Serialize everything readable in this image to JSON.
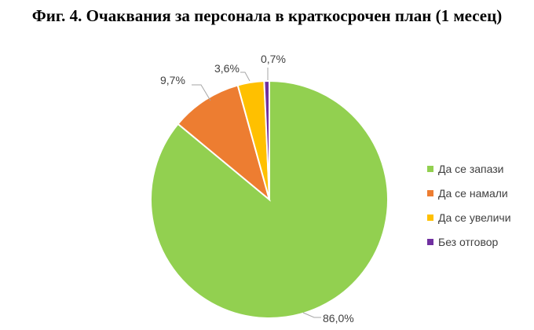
{
  "title": "Фиг. 4. Очаквания за персонала в краткосрочен план (1 месец)",
  "chart_data": {
    "type": "pie",
    "title": "Фиг. 4. Очаквания за персонала в краткосрочен план (1 месец)",
    "categories": [
      "Да се запази",
      "Да се намали",
      "Да се увеличи",
      "Без отговор"
    ],
    "values": [
      86.0,
      9.7,
      3.6,
      0.7
    ],
    "labels": [
      "86,0%",
      "9,7%",
      "3,6%",
      "0,7%"
    ],
    "colors": [
      "#92D050",
      "#ED7D31",
      "#FFC000",
      "#7030A0"
    ],
    "legend_position": "right",
    "start_angle": "12 o'clock, clockwise"
  },
  "legend": [
    {
      "label": "Да се запази",
      "color": "#92D050"
    },
    {
      "label": "Да се намали",
      "color": "#ED7D31"
    },
    {
      "label": "Да се увеличи",
      "color": "#FFC000"
    },
    {
      "label": "Без отговор",
      "color": "#7030A0"
    }
  ]
}
